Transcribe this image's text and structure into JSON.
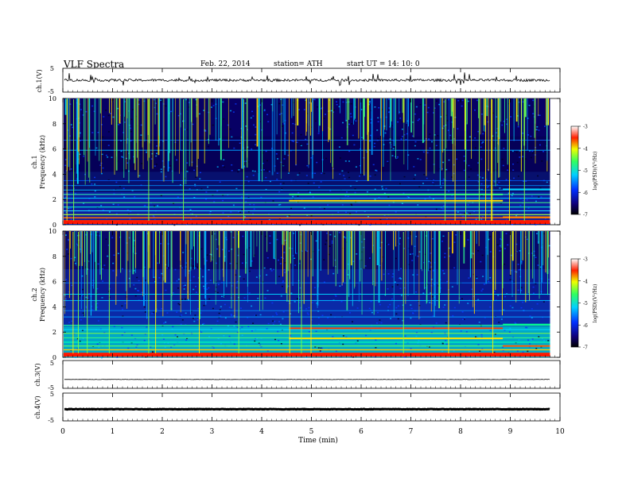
{
  "header": {
    "title": "VLF  Spectra",
    "date": "Feb. 22, 2014",
    "station": "station= ATH",
    "start": "start  UT =   14: 10: 0"
  },
  "chart_data": [
    {
      "type": "line",
      "panel": "ch1-waveform",
      "ylabel": "ch.1(V)",
      "ylim": [
        -5,
        5
      ],
      "yticks": [
        "5",
        "-5"
      ],
      "xlim": [
        0,
        10
      ],
      "approx_level": 0,
      "data_end_min": 9.8
    },
    {
      "type": "heatmap",
      "panel": "ch1-spectrogram",
      "ylabel_lines": [
        "ch.1",
        "Frequency  (kHz)"
      ],
      "ylim": [
        0,
        10
      ],
      "yticks": [
        "0",
        "2",
        "4",
        "6",
        "8",
        "10"
      ],
      "xlim": [
        0,
        10
      ],
      "data_end_min": 9.8,
      "colorbar": {
        "label": "log(PSD)(V²/Hz)",
        "range": [
          -7,
          -3
        ],
        "ticks": [
          "-3",
          "-4",
          "-5",
          "-6",
          "-7"
        ]
      },
      "description_regime_change_min": [
        4.55,
        8.85
      ]
    },
    {
      "type": "heatmap",
      "panel": "ch2-spectrogram",
      "ylabel_lines": [
        "ch.2",
        "Frequency  (kHz)"
      ],
      "ylim": [
        0,
        10
      ],
      "yticks": [
        "0",
        "2",
        "4",
        "6",
        "8",
        "10"
      ],
      "xlim": [
        0,
        10
      ],
      "data_end_min": 9.8,
      "colorbar": {
        "label": "log(PSD)(V²/Hz)",
        "range": [
          -7,
          -3
        ],
        "ticks": [
          "-3",
          "-4",
          "-5",
          "-6",
          "-7"
        ]
      }
    },
    {
      "type": "line",
      "panel": "ch3-waveform",
      "ylabel": "ch.3(V)",
      "ylim": [
        -5,
        5
      ],
      "yticks": [
        "5",
        "-5"
      ],
      "xlim": [
        0,
        10
      ],
      "approx_level": -1.8,
      "data_end_min": 9.8
    },
    {
      "type": "line",
      "panel": "ch4-waveform",
      "ylabel": "ch.4(V)",
      "ylim": [
        -5,
        5
      ],
      "yticks": [
        "5",
        "-5"
      ],
      "xlim": [
        0,
        10
      ],
      "approx_level": -0.8,
      "data_end_min": 9.8
    }
  ],
  "xaxis": {
    "label": "Time  (min)",
    "ticks": [
      "0",
      "1",
      "2",
      "3",
      "4",
      "5",
      "6",
      "7",
      "8",
      "9",
      "10"
    ]
  },
  "colors": {
    "colormap": [
      "#000000",
      "#0b0070",
      "#0030ff",
      "#00d0ff",
      "#30ff80",
      "#f0ff00",
      "#ff3000",
      "#ffffff"
    ]
  }
}
